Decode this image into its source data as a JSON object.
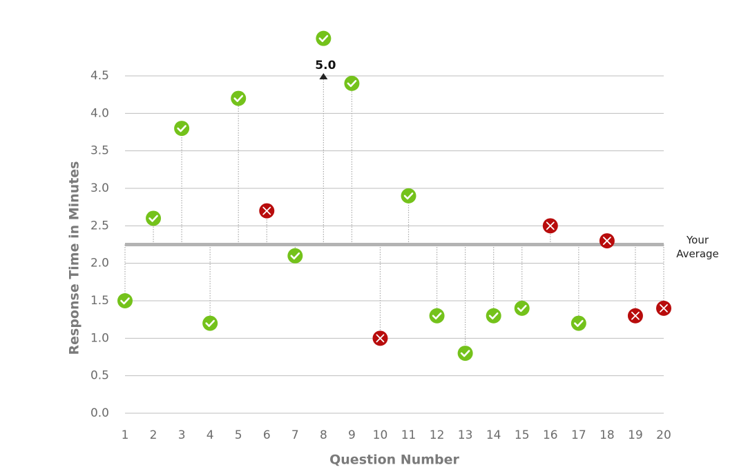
{
  "chart_data": {
    "type": "scatter",
    "x_label": "Question Number",
    "y_label": "Response Time in Minutes",
    "x": [
      1,
      2,
      3,
      4,
      5,
      6,
      7,
      8,
      9,
      10,
      11,
      12,
      13,
      14,
      15,
      16,
      17,
      18,
      19,
      20
    ],
    "series": [
      {
        "values": [
          1.5,
          2.6,
          3.8,
          1.2,
          4.2,
          2.7,
          2.1,
          5.0,
          4.4,
          1.0,
          2.9,
          1.3,
          0.8,
          1.3,
          1.4,
          2.5,
          1.2,
          2.3,
          1.3,
          1.4
        ],
        "value_labels": [
          null,
          null,
          null,
          null,
          null,
          null,
          null,
          "5.0",
          null,
          null,
          null,
          null,
          null,
          null,
          null,
          null,
          null,
          null,
          null,
          null
        ],
        "correct": [
          true,
          true,
          true,
          true,
          true,
          false,
          true,
          true,
          true,
          false,
          true,
          true,
          true,
          true,
          true,
          false,
          true,
          false,
          false,
          false
        ]
      }
    ],
    "colors": {
      "correct": "#74c21b",
      "incorrect": "#b80c0c"
    },
    "average": {
      "value": 2.25,
      "label": [
        "Your",
        "Average"
      ],
      "color": "#b3b3b3"
    },
    "xlim": [
      1,
      20
    ],
    "xticks": [
      1,
      2,
      3,
      4,
      5,
      6,
      7,
      8,
      9,
      10,
      11,
      12,
      13,
      14,
      15,
      16,
      17,
      18,
      19,
      20
    ],
    "ylim": [
      0,
      4.5
    ],
    "yticks": [
      {
        "value": 0,
        "label": "0.0"
      },
      0.5,
      {
        "value": 1,
        "label": "1.0"
      },
      1.5,
      {
        "value": 2,
        "label": "2.0"
      },
      2.5,
      {
        "value": 3,
        "label": "3.0"
      },
      3.5,
      {
        "value": 4,
        "label": "4.0"
      },
      4.5
    ],
    "grid": true
  }
}
